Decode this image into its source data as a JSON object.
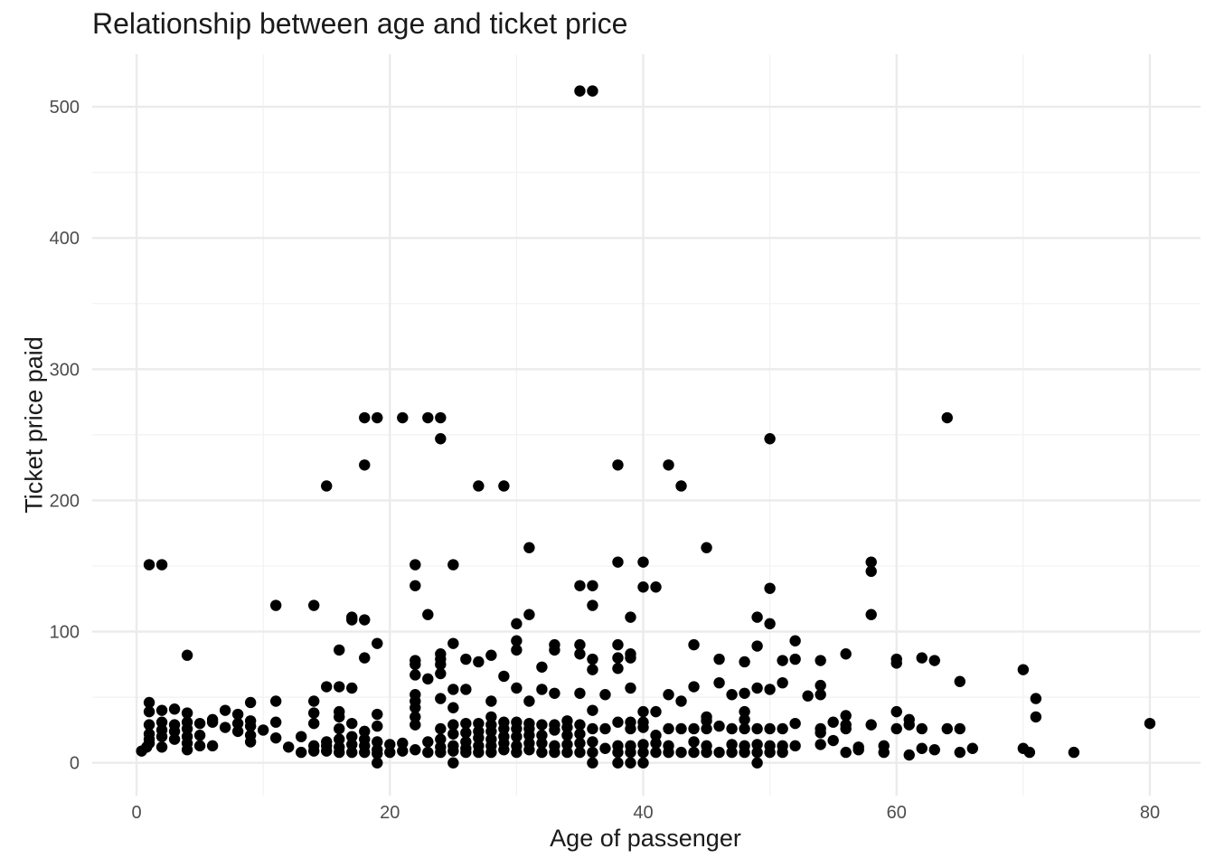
{
  "chart_data": {
    "type": "scatter",
    "title": "Relationship between age and ticket price",
    "xlabel": "Age of passenger",
    "ylabel": "Ticket price paid",
    "xlim": [
      -3.5,
      84
    ],
    "ylim": [
      -25,
      540
    ],
    "xticks": [
      0,
      20,
      40,
      60,
      80
    ],
    "yticks": [
      0,
      100,
      200,
      300,
      400,
      500
    ],
    "xtick_labels": [
      "0",
      "20",
      "40",
      "60",
      "80"
    ],
    "ytick_labels": [
      "0",
      "100",
      "200",
      "300",
      "400",
      "500"
    ],
    "grid": true,
    "points": [
      [
        35,
        512
      ],
      [
        36,
        512
      ],
      [
        18,
        263
      ],
      [
        19,
        263
      ],
      [
        21,
        263
      ],
      [
        23,
        263
      ],
      [
        24,
        263
      ],
      [
        64,
        263
      ],
      [
        24,
        247
      ],
      [
        50,
        247
      ],
      [
        18,
        227
      ],
      [
        38,
        227
      ],
      [
        42,
        227
      ],
      [
        15,
        211
      ],
      [
        27,
        211
      ],
      [
        29,
        211
      ],
      [
        43,
        211
      ],
      [
        31,
        164
      ],
      [
        45,
        164
      ],
      [
        1,
        151
      ],
      [
        2,
        151
      ],
      [
        22,
        151
      ],
      [
        25,
        151
      ],
      [
        38,
        153
      ],
      [
        40,
        153
      ],
      [
        58,
        153
      ],
      [
        58,
        146
      ],
      [
        22,
        135
      ],
      [
        35,
        135
      ],
      [
        36,
        135
      ],
      [
        40,
        134
      ],
      [
        41,
        134
      ],
      [
        50,
        133
      ],
      [
        11,
        120
      ],
      [
        14,
        120
      ],
      [
        36,
        120
      ],
      [
        17,
        111
      ],
      [
        17,
        109
      ],
      [
        18,
        109
      ],
      [
        23,
        113
      ],
      [
        31,
        113
      ],
      [
        39,
        111
      ],
      [
        49,
        111
      ],
      [
        58,
        113
      ],
      [
        30,
        106
      ],
      [
        50,
        106
      ],
      [
        19,
        91
      ],
      [
        25,
        91
      ],
      [
        30,
        93
      ],
      [
        33,
        90
      ],
      [
        35,
        90
      ],
      [
        38,
        90
      ],
      [
        44,
        90
      ],
      [
        49,
        89
      ],
      [
        52,
        93
      ],
      [
        16,
        86
      ],
      [
        30,
        86
      ],
      [
        33,
        86
      ],
      [
        56,
        83
      ],
      [
        4,
        82
      ],
      [
        24,
        83
      ],
      [
        28,
        82
      ],
      [
        35,
        83
      ],
      [
        39,
        83
      ],
      [
        39,
        80
      ],
      [
        18,
        80
      ],
      [
        24,
        79
      ],
      [
        26,
        79
      ],
      [
        36,
        79
      ],
      [
        38,
        80
      ],
      [
        46,
        79
      ],
      [
        48,
        77
      ],
      [
        51,
        78
      ],
      [
        52,
        79
      ],
      [
        54,
        78
      ],
      [
        60,
        79
      ],
      [
        60,
        76
      ],
      [
        62,
        80
      ],
      [
        63,
        78
      ],
      [
        22,
        78
      ],
      [
        22,
        75
      ],
      [
        24,
        75
      ],
      [
        27,
        77
      ],
      [
        32,
        73
      ],
      [
        36,
        71
      ],
      [
        38,
        72
      ],
      [
        70,
        71
      ],
      [
        22,
        67
      ],
      [
        23,
        64
      ],
      [
        24,
        68
      ],
      [
        29,
        66
      ],
      [
        46,
        61
      ],
      [
        51,
        61
      ],
      [
        65,
        62
      ],
      [
        15,
        58
      ],
      [
        16,
        58
      ],
      [
        17,
        57
      ],
      [
        25,
        56
      ],
      [
        26,
        56
      ],
      [
        30,
        57
      ],
      [
        32,
        56
      ],
      [
        33,
        53
      ],
      [
        35,
        53
      ],
      [
        37,
        52
      ],
      [
        39,
        57
      ],
      [
        42,
        52
      ],
      [
        44,
        58
      ],
      [
        47,
        52
      ],
      [
        48,
        53
      ],
      [
        49,
        57
      ],
      [
        50,
        56
      ],
      [
        53,
        51
      ],
      [
        54,
        59
      ],
      [
        54,
        52
      ],
      [
        14,
        47
      ],
      [
        11,
        47
      ],
      [
        9,
        46
      ],
      [
        1,
        46
      ],
      [
        22,
        52
      ],
      [
        22,
        47
      ],
      [
        24,
        49
      ],
      [
        28,
        47
      ],
      [
        31,
        47
      ],
      [
        43,
        47
      ],
      [
        71,
        49
      ],
      [
        1,
        39
      ],
      [
        2,
        40
      ],
      [
        3,
        41
      ],
      [
        4,
        38
      ],
      [
        6,
        33
      ],
      [
        7,
        40
      ],
      [
        8,
        37
      ],
      [
        9,
        32
      ],
      [
        14,
        38
      ],
      [
        16,
        39
      ],
      [
        22,
        42
      ],
      [
        25,
        42
      ],
      [
        36,
        40
      ],
      [
        40,
        39
      ],
      [
        41,
        39
      ],
      [
        45,
        32
      ],
      [
        48,
        39
      ],
      [
        56,
        36
      ],
      [
        58,
        29
      ],
      [
        60,
        39
      ],
      [
        61,
        33
      ],
      [
        71,
        35
      ],
      [
        80,
        30
      ],
      [
        1,
        29
      ],
      [
        1,
        22
      ],
      [
        1,
        18
      ],
      [
        1,
        15
      ],
      [
        0.4,
        9
      ],
      [
        0.8,
        12
      ],
      [
        2,
        31
      ],
      [
        2,
        25
      ],
      [
        2,
        20
      ],
      [
        2,
        12
      ],
      [
        3,
        29
      ],
      [
        3,
        24
      ],
      [
        3,
        18
      ],
      [
        4,
        31
      ],
      [
        4,
        26
      ],
      [
        4,
        20
      ],
      [
        4,
        15
      ],
      [
        4,
        10
      ],
      [
        5,
        30
      ],
      [
        5,
        21
      ],
      [
        5,
        13
      ],
      [
        6,
        31
      ],
      [
        6,
        13
      ],
      [
        7,
        27
      ],
      [
        8,
        30
      ],
      [
        8,
        24
      ],
      [
        9,
        28
      ],
      [
        9,
        21
      ],
      [
        9,
        16
      ],
      [
        10,
        25
      ],
      [
        11,
        31
      ],
      [
        11,
        19
      ],
      [
        12,
        12
      ],
      [
        13,
        8
      ],
      [
        13,
        20
      ],
      [
        14,
        30
      ],
      [
        14,
        13
      ],
      [
        14,
        9
      ],
      [
        15,
        16
      ],
      [
        15,
        13
      ],
      [
        15,
        9
      ],
      [
        16,
        35
      ],
      [
        16,
        26
      ],
      [
        16,
        18
      ],
      [
        16,
        12
      ],
      [
        16,
        8
      ],
      [
        17,
        30
      ],
      [
        17,
        20
      ],
      [
        17,
        14
      ],
      [
        17,
        8
      ],
      [
        18,
        24
      ],
      [
        18,
        18
      ],
      [
        18,
        13
      ],
      [
        18,
        8
      ],
      [
        19,
        37
      ],
      [
        19,
        28
      ],
      [
        19,
        16
      ],
      [
        19,
        10
      ],
      [
        19,
        7
      ],
      [
        19,
        0
      ],
      [
        20,
        14
      ],
      [
        20,
        8
      ],
      [
        21,
        15
      ],
      [
        21,
        9
      ],
      [
        22,
        35
      ],
      [
        22,
        29
      ],
      [
        22,
        10
      ],
      [
        23,
        16
      ],
      [
        23,
        8
      ],
      [
        24,
        26
      ],
      [
        24,
        18
      ],
      [
        24,
        12
      ],
      [
        24,
        8
      ],
      [
        25,
        29
      ],
      [
        25,
        22
      ],
      [
        25,
        13
      ],
      [
        25,
        9
      ],
      [
        25,
        0
      ],
      [
        26,
        30
      ],
      [
        26,
        23
      ],
      [
        26,
        16
      ],
      [
        26,
        11
      ],
      [
        26,
        8
      ],
      [
        27,
        30
      ],
      [
        27,
        24
      ],
      [
        27,
        19
      ],
      [
        27,
        13
      ],
      [
        27,
        8
      ],
      [
        28,
        35
      ],
      [
        28,
        29
      ],
      [
        28,
        24
      ],
      [
        28,
        18
      ],
      [
        28,
        13
      ],
      [
        28,
        8
      ],
      [
        29,
        31
      ],
      [
        29,
        26
      ],
      [
        29,
        20
      ],
      [
        29,
        15
      ],
      [
        29,
        10
      ],
      [
        30,
        31
      ],
      [
        30,
        26
      ],
      [
        30,
        20
      ],
      [
        30,
        13
      ],
      [
        30,
        8
      ],
      [
        31,
        30
      ],
      [
        31,
        26
      ],
      [
        31,
        21
      ],
      [
        31,
        15
      ],
      [
        31,
        10
      ],
      [
        32,
        29
      ],
      [
        32,
        21
      ],
      [
        32,
        15
      ],
      [
        32,
        8
      ],
      [
        33,
        29
      ],
      [
        33,
        25
      ],
      [
        33,
        13
      ],
      [
        33,
        8
      ],
      [
        34,
        32
      ],
      [
        34,
        27
      ],
      [
        34,
        21
      ],
      [
        34,
        14
      ],
      [
        34,
        8
      ],
      [
        35,
        29
      ],
      [
        35,
        22
      ],
      [
        35,
        15
      ],
      [
        35,
        8
      ],
      [
        36,
        26
      ],
      [
        36,
        16
      ],
      [
        36,
        8
      ],
      [
        36,
        0
      ],
      [
        37,
        26
      ],
      [
        37,
        11
      ],
      [
        38,
        31
      ],
      [
        38,
        13
      ],
      [
        38,
        8
      ],
      [
        38,
        0
      ],
      [
        39,
        31
      ],
      [
        39,
        26
      ],
      [
        39,
        13
      ],
      [
        39,
        8
      ],
      [
        39,
        0
      ],
      [
        40,
        31
      ],
      [
        40,
        27
      ],
      [
        40,
        14
      ],
      [
        40,
        8
      ],
      [
        40,
        0
      ],
      [
        41,
        21
      ],
      [
        41,
        15
      ],
      [
        41,
        8
      ],
      [
        42,
        26
      ],
      [
        42,
        13
      ],
      [
        42,
        8
      ],
      [
        43,
        26
      ],
      [
        43,
        8
      ],
      [
        44,
        26
      ],
      [
        44,
        16
      ],
      [
        44,
        8
      ],
      [
        45,
        35
      ],
      [
        45,
        26
      ],
      [
        45,
        13
      ],
      [
        45,
        8
      ],
      [
        46,
        28
      ],
      [
        46,
        8
      ],
      [
        47,
        26
      ],
      [
        47,
        14
      ],
      [
        47,
        8
      ],
      [
        48,
        33
      ],
      [
        48,
        26
      ],
      [
        48,
        13
      ],
      [
        48,
        8
      ],
      [
        49,
        26
      ],
      [
        49,
        14
      ],
      [
        49,
        8
      ],
      [
        49,
        0
      ],
      [
        50,
        26
      ],
      [
        50,
        13
      ],
      [
        50,
        8
      ],
      [
        51,
        26
      ],
      [
        51,
        13
      ],
      [
        51,
        8
      ],
      [
        52,
        30
      ],
      [
        52,
        13
      ],
      [
        54,
        26
      ],
      [
        54,
        23
      ],
      [
        54,
        14
      ],
      [
        55,
        31
      ],
      [
        55,
        17
      ],
      [
        56,
        29
      ],
      [
        56,
        26
      ],
      [
        56,
        8
      ],
      [
        57,
        12
      ],
      [
        57,
        10
      ],
      [
        59,
        13
      ],
      [
        59,
        8
      ],
      [
        60,
        26
      ],
      [
        61,
        29
      ],
      [
        61,
        6
      ],
      [
        62,
        26
      ],
      [
        62,
        11
      ],
      [
        63,
        10
      ],
      [
        64,
        26
      ],
      [
        65,
        26
      ],
      [
        65,
        8
      ],
      [
        66,
        11
      ],
      [
        70,
        11
      ],
      [
        70.5,
        8
      ],
      [
        74,
        8
      ]
    ]
  }
}
